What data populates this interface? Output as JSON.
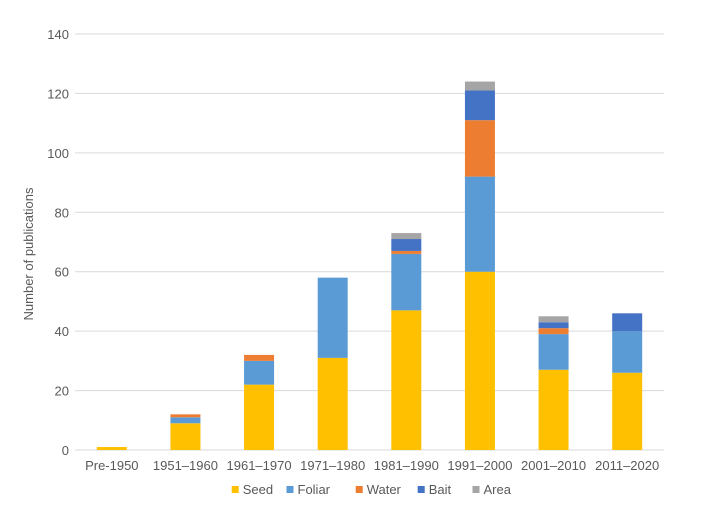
{
  "chart_data": {
    "type": "bar",
    "stacked": true,
    "categories": [
      "Pre-1950",
      "1951–1960",
      "1961–1970",
      "1971–1980",
      "1981–1990",
      "1991–2000",
      "2001–2010",
      "2011–2020"
    ],
    "series": [
      {
        "name": "Seed",
        "color": "#ffc000",
        "values": [
          1,
          9,
          22,
          31,
          47,
          60,
          27,
          26
        ]
      },
      {
        "name": "Foliar",
        "color": "#5b9bd5",
        "values": [
          0,
          2,
          8,
          27,
          19,
          32,
          12,
          14
        ]
      },
      {
        "name": "Water",
        "color": "#ed7d31",
        "values": [
          0,
          1,
          2,
          0,
          1,
          19,
          2,
          0
        ]
      },
      {
        "name": "Bait",
        "color": "#4472c4",
        "values": [
          0,
          0,
          0,
          0,
          4,
          10,
          2,
          6
        ]
      },
      {
        "name": "Area",
        "color": "#a5a5a5",
        "values": [
          0,
          0,
          0,
          0,
          2,
          3,
          2,
          0
        ]
      }
    ],
    "ylabel": "Number of publications",
    "xlabel": "",
    "ylim": [
      0,
      140
    ],
    "yticks": [
      0,
      20,
      40,
      60,
      80,
      100,
      120,
      140
    ],
    "grid": true,
    "legend_position": "bottom"
  }
}
